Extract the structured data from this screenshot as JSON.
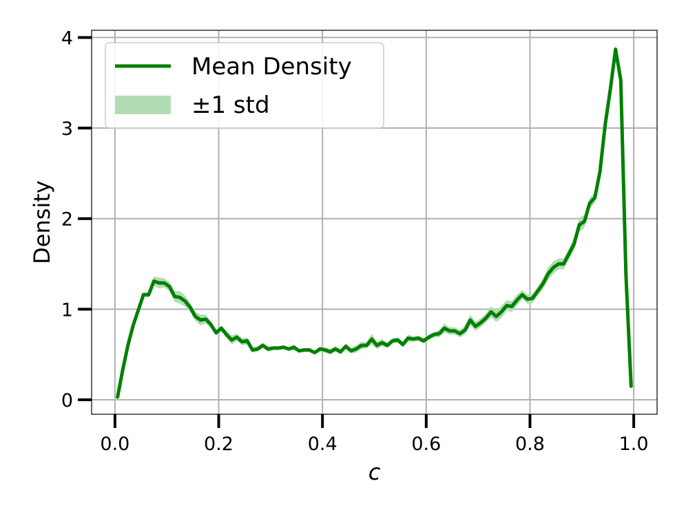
{
  "chart_data": {
    "type": "line",
    "title": "",
    "xlabel": "c",
    "ylabel": "Density",
    "xlim": [
      -0.045,
      1.045
    ],
    "ylim": [
      -0.16,
      4.08
    ],
    "xticks": [
      0.0,
      0.2,
      0.4,
      0.6,
      0.8,
      1.0
    ],
    "xtick_labels": [
      "0.0",
      "0.2",
      "0.4",
      "0.6",
      "0.8",
      "1.0"
    ],
    "yticks": [
      0,
      1,
      2,
      3,
      4
    ],
    "ytick_labels": [
      "0",
      "1",
      "2",
      "3",
      "4"
    ],
    "grid": true,
    "legend_position": "top-left",
    "line_color": "#008000",
    "band_color": "#b4dcb4",
    "series": [
      {
        "name": "Mean Density",
        "kind": "line",
        "x": [
          0.005,
          0.015,
          0.025,
          0.035,
          0.045,
          0.055,
          0.065,
          0.075,
          0.085,
          0.095,
          0.105,
          0.115,
          0.125,
          0.135,
          0.145,
          0.155,
          0.165,
          0.175,
          0.185,
          0.195,
          0.205,
          0.215,
          0.225,
          0.235,
          0.245,
          0.255,
          0.265,
          0.275,
          0.285,
          0.295,
          0.305,
          0.315,
          0.325,
          0.335,
          0.345,
          0.355,
          0.365,
          0.375,
          0.385,
          0.395,
          0.405,
          0.415,
          0.425,
          0.435,
          0.445,
          0.455,
          0.465,
          0.475,
          0.485,
          0.495,
          0.505,
          0.515,
          0.525,
          0.535,
          0.545,
          0.555,
          0.565,
          0.575,
          0.585,
          0.595,
          0.605,
          0.615,
          0.625,
          0.635,
          0.645,
          0.655,
          0.665,
          0.675,
          0.685,
          0.695,
          0.705,
          0.715,
          0.725,
          0.735,
          0.745,
          0.755,
          0.765,
          0.775,
          0.785,
          0.795,
          0.805,
          0.815,
          0.825,
          0.835,
          0.845,
          0.855,
          0.865,
          0.875,
          0.885,
          0.895,
          0.905,
          0.915,
          0.925,
          0.935,
          0.945,
          0.955,
          0.965,
          0.975,
          0.985,
          0.995
        ],
        "y": [
          0.03,
          0.33,
          0.6,
          0.82,
          0.99,
          1.16,
          1.16,
          1.31,
          1.29,
          1.29,
          1.25,
          1.14,
          1.13,
          1.09,
          1.02,
          0.92,
          0.88,
          0.89,
          0.83,
          0.74,
          0.79,
          0.72,
          0.66,
          0.69,
          0.64,
          0.65,
          0.55,
          0.56,
          0.6,
          0.56,
          0.57,
          0.57,
          0.58,
          0.56,
          0.58,
          0.54,
          0.55,
          0.55,
          0.52,
          0.56,
          0.55,
          0.53,
          0.56,
          0.53,
          0.59,
          0.54,
          0.56,
          0.6,
          0.6,
          0.67,
          0.6,
          0.63,
          0.6,
          0.65,
          0.66,
          0.61,
          0.68,
          0.67,
          0.68,
          0.65,
          0.69,
          0.72,
          0.73,
          0.79,
          0.76,
          0.76,
          0.73,
          0.77,
          0.88,
          0.81,
          0.85,
          0.9,
          0.97,
          0.92,
          0.97,
          1.04,
          1.03,
          1.1,
          1.16,
          1.11,
          1.12,
          1.2,
          1.28,
          1.39,
          1.46,
          1.5,
          1.5,
          1.61,
          1.72,
          1.93,
          1.97,
          2.17,
          2.23,
          2.52,
          3.04,
          3.43,
          3.87,
          3.53,
          1.38,
          0.15
        ]
      },
      {
        "name": "±1 std",
        "kind": "band",
        "std": [
          0.01,
          0.02,
          0.02,
          0.02,
          0.02,
          0.02,
          0.03,
          0.05,
          0.06,
          0.05,
          0.05,
          0.06,
          0.07,
          0.06,
          0.05,
          0.05,
          0.06,
          0.05,
          0.04,
          0.03,
          0.03,
          0.04,
          0.05,
          0.04,
          0.04,
          0.04,
          0.03,
          0.03,
          0.03,
          0.03,
          0.02,
          0.02,
          0.02,
          0.02,
          0.03,
          0.02,
          0.02,
          0.02,
          0.02,
          0.03,
          0.03,
          0.03,
          0.03,
          0.03,
          0.03,
          0.03,
          0.04,
          0.04,
          0.03,
          0.06,
          0.04,
          0.04,
          0.03,
          0.03,
          0.03,
          0.03,
          0.04,
          0.03,
          0.03,
          0.03,
          0.03,
          0.03,
          0.04,
          0.05,
          0.04,
          0.04,
          0.04,
          0.05,
          0.06,
          0.05,
          0.05,
          0.05,
          0.06,
          0.06,
          0.07,
          0.06,
          0.06,
          0.06,
          0.05,
          0.05,
          0.05,
          0.05,
          0.06,
          0.07,
          0.07,
          0.06,
          0.06,
          0.06,
          0.07,
          0.08,
          0.07,
          0.06,
          0.06,
          0.07,
          0.07,
          0.07,
          0.05,
          0.06,
          0.05,
          0.03
        ]
      }
    ]
  }
}
